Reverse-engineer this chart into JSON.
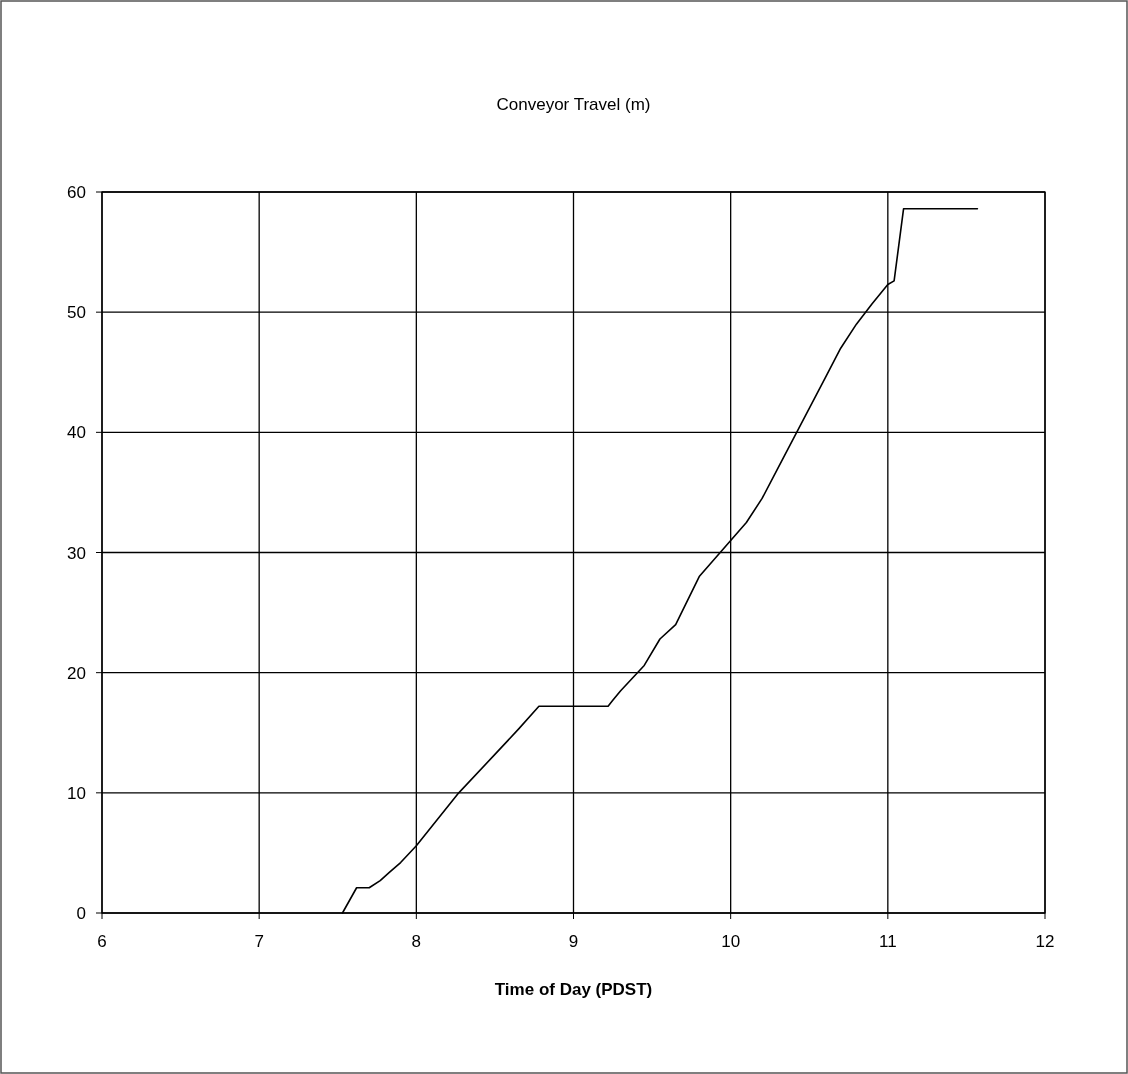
{
  "chart_data": {
    "type": "line",
    "title": "Conveyor Travel (m)",
    "xlabel": "Time of Day (PDST)",
    "x": [
      7.53,
      7.62,
      7.7,
      7.77,
      7.83,
      7.9,
      8.0,
      8.27,
      8.5,
      8.65,
      8.78,
      9.22,
      9.25,
      9.3,
      9.45,
      9.55,
      9.65,
      9.8,
      9.9,
      10.0,
      10.1,
      10.2,
      10.3,
      10.4,
      10.5,
      10.6,
      10.7,
      10.8,
      10.9,
      11.0,
      11.04,
      11.1,
      11.57
    ],
    "series": [
      {
        "color": "#000000",
        "values": [
          0,
          2.1,
          2.1,
          2.7,
          3.4,
          4.2,
          5.6,
          10,
          13.2,
          15.3,
          17.2,
          17.2,
          17.7,
          18.5,
          20.6,
          22.8,
          24,
          28,
          29.5,
          31,
          32.5,
          34.5,
          37,
          39.5,
          42,
          44.5,
          47,
          49,
          50.7,
          52.3,
          52.6,
          58.6,
          58.6
        ]
      }
    ],
    "xlim": [
      6,
      12
    ],
    "xticks": [
      6,
      7,
      8,
      9,
      10,
      11,
      12
    ],
    "ylim": [
      0,
      60
    ],
    "yticks": [
      0,
      10,
      20,
      30,
      40,
      50,
      60
    ],
    "grid": true,
    "marker": "none",
    "line_style": "solid"
  }
}
